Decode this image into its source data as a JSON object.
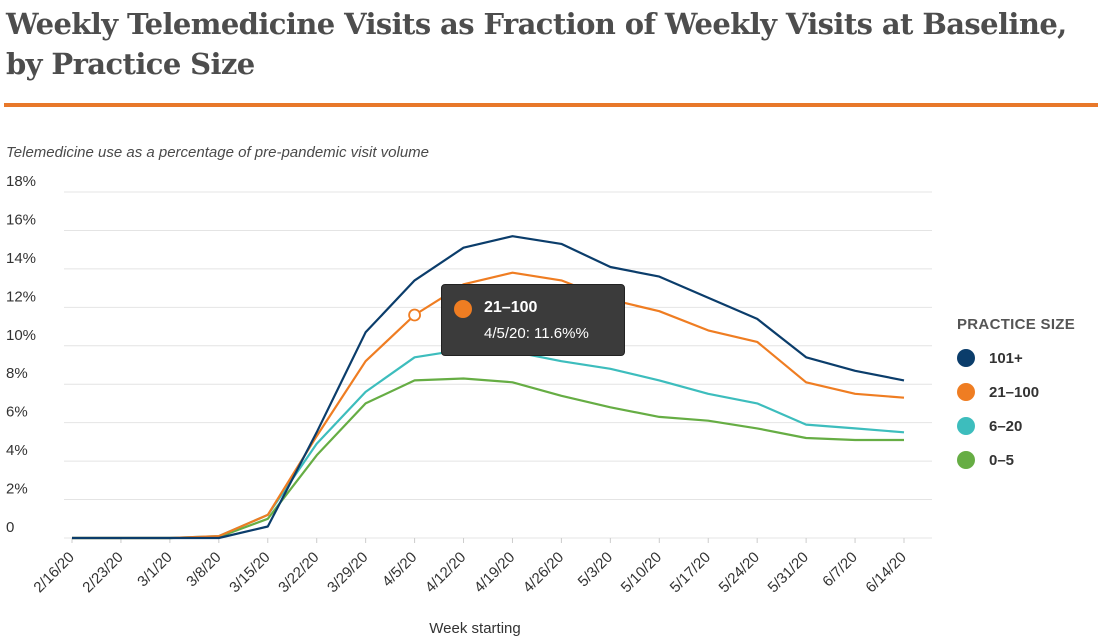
{
  "title": "Weekly Telemedicine Visits as Fraction of Weekly Visits at Baseline, by Practice Size",
  "subtitle": "Telemedicine use as a percentage of pre-pandemic visit volume",
  "colors": {
    "accent_rule": "#e8782a",
    "grid": "#e4e4e4"
  },
  "legend": {
    "title": "PRACTICE SIZE",
    "items": [
      {
        "label": "101+",
        "color": "#0b3d6b"
      },
      {
        "label": "21–100",
        "color": "#ef7d22"
      },
      {
        "label": "6–20",
        "color": "#3dbdbd"
      },
      {
        "label": "0–5",
        "color": "#66ad44"
      }
    ]
  },
  "tooltip": {
    "series": "21–100",
    "text": "4/5/20: 11.6%%",
    "color": "#ef7d22",
    "category": "4/5/20",
    "value": 11.6
  },
  "chart_data": {
    "type": "line",
    "title": "Weekly Telemedicine Visits as Fraction of Weekly Visits at Baseline, by Practice Size",
    "subtitle": "Telemedicine use as a percentage of pre-pandemic visit volume",
    "xlabel": "Week starting",
    "ylabel": "",
    "ylim": [
      0,
      18
    ],
    "yticks": [
      "0",
      "2%",
      "4%",
      "6%",
      "8%",
      "10%",
      "12%",
      "14%",
      "16%",
      "18%"
    ],
    "ytick_values": [
      0,
      2,
      4,
      6,
      8,
      10,
      12,
      14,
      16,
      18
    ],
    "grid": true,
    "legend_position": "right",
    "categories": [
      "2/16/20",
      "2/23/20",
      "3/1/20",
      "3/8/20",
      "3/15/20",
      "3/22/20",
      "3/29/20",
      "4/5/20",
      "4/12/20",
      "4/19/20",
      "4/26/20",
      "5/3/20",
      "5/10/20",
      "5/17/20",
      "5/24/20",
      "5/31/20",
      "6/7/20",
      "6/14/20"
    ],
    "series": [
      {
        "name": "101+",
        "color": "#0b3d6b",
        "values": [
          0,
          0,
          0,
          0,
          0.6,
          5.5,
          10.7,
          13.4,
          15.1,
          15.7,
          15.3,
          14.1,
          13.6,
          12.5,
          11.4,
          9.4,
          8.7,
          8.2
        ]
      },
      {
        "name": "21–100",
        "color": "#ef7d22",
        "values": [
          0,
          0,
          0,
          0.1,
          1.2,
          5.3,
          9.2,
          11.6,
          13.2,
          13.8,
          13.4,
          12.4,
          11.8,
          10.8,
          10.2,
          8.1,
          7.5,
          7.3
        ]
      },
      {
        "name": "6–20",
        "color": "#3dbdbd",
        "values": [
          0,
          0,
          0,
          0.1,
          1.2,
          4.9,
          7.6,
          9.4,
          9.8,
          9.7,
          9.2,
          8.8,
          8.2,
          7.5,
          7.0,
          5.9,
          5.7,
          5.5
        ]
      },
      {
        "name": "0–5",
        "color": "#66ad44",
        "values": [
          0,
          0,
          0,
          0.05,
          1.0,
          4.3,
          7.0,
          8.2,
          8.3,
          8.1,
          7.4,
          6.8,
          6.3,
          6.1,
          5.7,
          5.2,
          5.1,
          5.1
        ]
      }
    ]
  }
}
